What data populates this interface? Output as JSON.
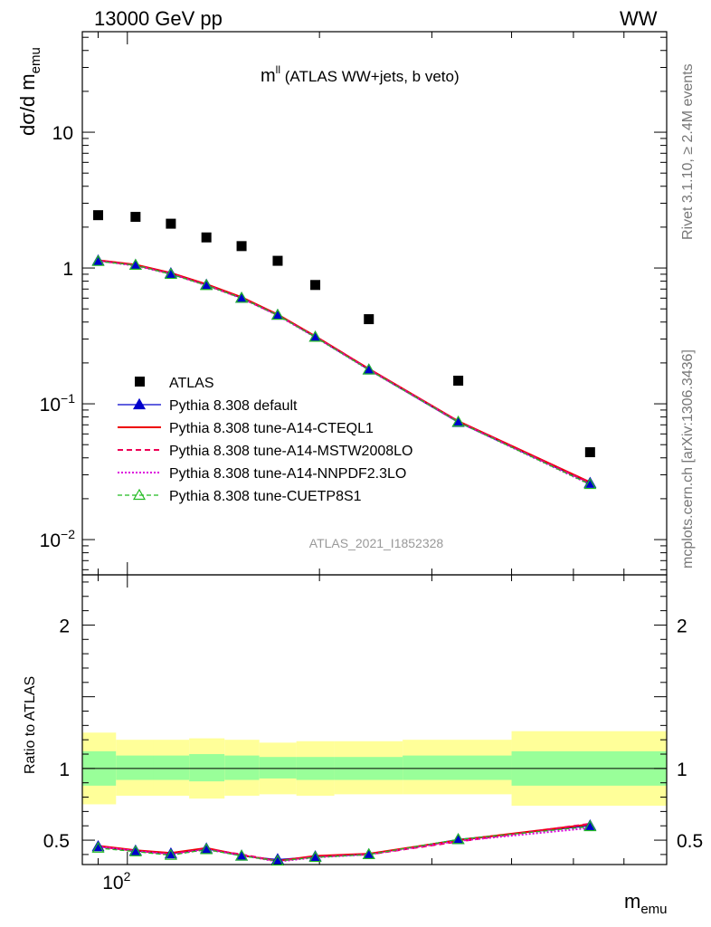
{
  "header": {
    "energy_label": "13000 GeV pp",
    "process_label": "WW"
  },
  "side_labels": {
    "rivet": "Rivet 3.1.10, ≥ 2.4M events",
    "mcplots": "mcplots.cern.ch [arXiv:1306.3436]"
  },
  "colors": {
    "atlas": "#000000",
    "default": "#0000cc",
    "a14_cteql1": "#ee0000",
    "a14_mstw": "#ee0055",
    "a14_nnpdf": "#dd00dd",
    "cuetp8s1": "#22bb22",
    "band_inner": "#99ff99",
    "band_outer": "#ffff99"
  },
  "chart_data": [
    {
      "type": "scatter",
      "title": "m",
      "title_superscript": "ll",
      "title_suffix": " (ATLAS WW+jets, b veto)",
      "ylabel_main": "dσ/d m",
      "ylabel_sub": "emu",
      "xlabel_main": "m",
      "xlabel_sub": "emu",
      "watermark": "ATLAS_2021_I1852328",
      "x_scale": "log",
      "y_scale": "log",
      "xlim": [
        85,
        700
      ],
      "ylim": [
        0.0055,
        55
      ],
      "x_tick_label": "10^2",
      "y_tick_labels": [
        "10^-2",
        "10^-1",
        "1",
        "10"
      ],
      "legend_position": "bottom-left",
      "x": [
        90,
        103,
        117,
        133,
        151,
        172,
        197,
        239,
        330,
        531
      ],
      "series": [
        {
          "name": "ATLAS",
          "marker": "square",
          "values": [
            2.45,
            2.38,
            2.12,
            1.68,
            1.45,
            1.13,
            0.75,
            0.42,
            0.148,
            0.044
          ]
        },
        {
          "name": "Pythia 8.308 default",
          "marker": "triangle-filled",
          "values": [
            1.13,
            1.05,
            0.91,
            0.75,
            0.6,
            0.45,
            0.31,
            0.178,
            0.073,
            0.026
          ]
        },
        {
          "name": "Pythia 8.308 tune-A14-CTEQL1",
          "line": "solid",
          "values": [
            1.14,
            1.06,
            0.92,
            0.76,
            0.61,
            0.455,
            0.315,
            0.181,
            0.0745,
            0.0265
          ]
        },
        {
          "name": "Pythia 8.308 tune-A14-MSTW2008LO",
          "line": "dashed",
          "values": [
            1.13,
            1.05,
            0.91,
            0.75,
            0.6,
            0.45,
            0.312,
            0.18,
            0.074,
            0.0262
          ]
        },
        {
          "name": "Pythia 8.308 tune-A14-NNPDF2.3LO",
          "line": "dotted",
          "values": [
            1.13,
            1.04,
            0.905,
            0.745,
            0.598,
            0.448,
            0.31,
            0.178,
            0.0735,
            0.0255
          ]
        },
        {
          "name": "Pythia 8.308 tune-CUETP8S1",
          "marker": "triangle-open",
          "line": "dashed",
          "values": [
            1.12,
            1.05,
            0.9,
            0.745,
            0.6,
            0.45,
            0.31,
            0.178,
            0.0735,
            0.0255
          ]
        }
      ]
    },
    {
      "type": "line",
      "ylabel": "Ratio to ATLAS",
      "x_scale": "log",
      "xlim": [
        85,
        700
      ],
      "ylim": [
        0.33,
        2.35
      ],
      "y_tick_labels": [
        "0.5",
        "1",
        "2"
      ],
      "bin_edges": [
        85,
        96,
        110,
        125,
        142,
        161,
        184,
        211,
        270,
        400,
        700
      ],
      "band_inner": {
        "low": [
          0.88,
          0.92,
          0.92,
          0.91,
          0.92,
          0.93,
          0.92,
          0.92,
          0.92,
          0.88
        ],
        "high": [
          1.12,
          1.09,
          1.09,
          1.1,
          1.09,
          1.08,
          1.08,
          1.08,
          1.09,
          1.12
        ]
      },
      "band_outer": {
        "low": [
          0.75,
          0.81,
          0.81,
          0.79,
          0.81,
          0.82,
          0.81,
          0.82,
          0.82,
          0.74
        ],
        "high": [
          1.25,
          1.2,
          1.2,
          1.21,
          1.2,
          1.18,
          1.19,
          1.19,
          1.2,
          1.26
        ]
      },
      "x": [
        90,
        103,
        117,
        133,
        151,
        172,
        197,
        239,
        330,
        531
      ],
      "series": [
        {
          "name": "Pythia 8.308 default",
          "values": [
            0.455,
            0.425,
            0.405,
            0.44,
            0.39,
            0.365,
            0.385,
            0.4,
            0.505,
            0.6
          ]
        },
        {
          "name": "Pythia 8.308 tune-A14-CTEQL1",
          "values": [
            0.46,
            0.43,
            0.41,
            0.445,
            0.395,
            0.355,
            0.39,
            0.405,
            0.5,
            0.61
          ]
        },
        {
          "name": "Pythia 8.308 tune-A14-MSTW2008LO",
          "values": [
            0.455,
            0.425,
            0.405,
            0.44,
            0.4,
            0.355,
            0.385,
            0.4,
            0.49,
            0.615
          ]
        },
        {
          "name": "Pythia 8.308 tune-A14-NNPDF2.3LO",
          "values": [
            0.455,
            0.425,
            0.4,
            0.435,
            0.395,
            0.35,
            0.38,
            0.4,
            0.495,
            0.585
          ]
        },
        {
          "name": "Pythia 8.308 tune-CUETP8S1",
          "values": [
            0.445,
            0.42,
            0.395,
            0.435,
            0.39,
            0.355,
            0.38,
            0.4,
            0.505,
            0.595
          ]
        }
      ]
    }
  ]
}
